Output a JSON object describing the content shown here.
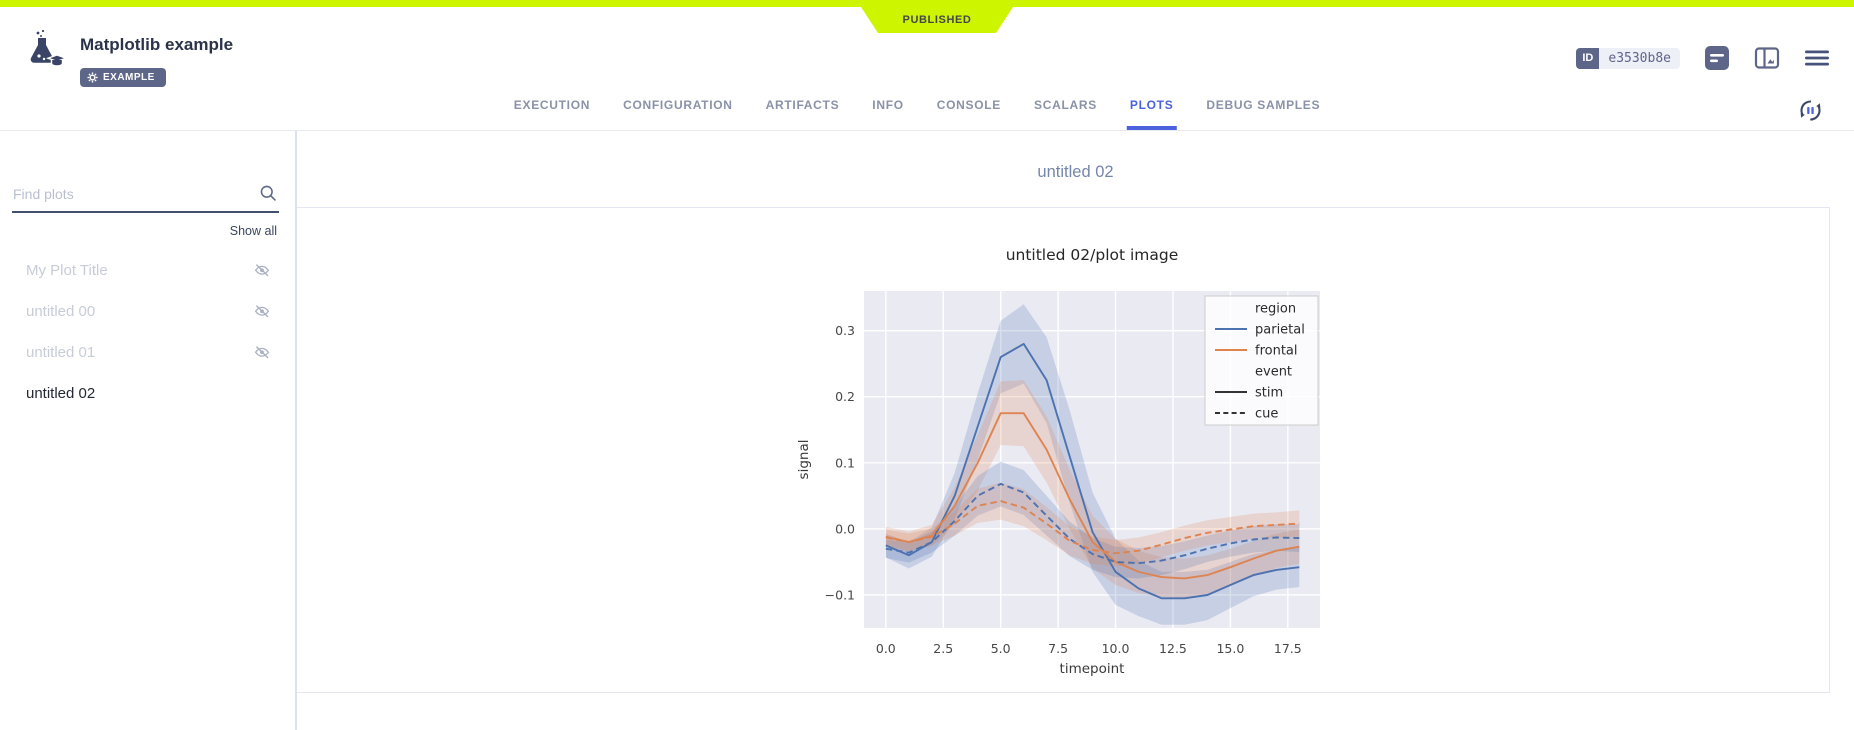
{
  "published_banner": {
    "label": "PUBLISHED"
  },
  "header": {
    "title": "Matplotlib example",
    "tag": "EXAMPLE",
    "id_label": "ID",
    "id_value": "e3530b8e"
  },
  "tabs": {
    "items": [
      "EXECUTION",
      "CONFIGURATION",
      "ARTIFACTS",
      "INFO",
      "CONSOLE",
      "SCALARS",
      "PLOTS",
      "DEBUG SAMPLES"
    ],
    "active": "PLOTS"
  },
  "sidebar": {
    "search_placeholder": "Find plots",
    "show_all": "Show all",
    "plots": [
      {
        "label": "My Plot Title",
        "hidden": true
      },
      {
        "label": "untitled 00",
        "hidden": true
      },
      {
        "label": "untitled 01",
        "hidden": true
      },
      {
        "label": "untitled 02",
        "hidden": false,
        "selected": true
      }
    ]
  },
  "main": {
    "group_title": "untitled 02"
  },
  "colors": {
    "accent_blue": "#4b61dd",
    "banner": "#cdf500",
    "slate": "#5d6588",
    "series_blue": "#4c72b0",
    "series_orange": "#dd8452"
  },
  "chart_data": {
    "type": "line",
    "title": "untitled 02/plot image",
    "xlabel": "timepoint",
    "ylabel": "signal",
    "xlim": [
      -0.95,
      18.9
    ],
    "ylim": [
      -0.15,
      0.36
    ],
    "xticks": [
      0.0,
      2.5,
      5.0,
      7.5,
      10.0,
      12.5,
      15.0,
      17.5
    ],
    "yticks": [
      0.3,
      0.2,
      0.1,
      0.0,
      -0.1
    ],
    "grid": true,
    "background": "#eaeaf2",
    "legend_position": "upper right",
    "legend_entries": [
      {
        "label": "region",
        "type": "title"
      },
      {
        "label": "parietal",
        "type": "line",
        "color": "#4c72b0",
        "dash": "solid"
      },
      {
        "label": "frontal",
        "type": "line",
        "color": "#dd8452",
        "dash": "solid"
      },
      {
        "label": "event",
        "type": "title"
      },
      {
        "label": "stim",
        "type": "line",
        "color": "#333333",
        "dash": "solid"
      },
      {
        "label": "cue",
        "type": "line",
        "color": "#333333",
        "dash": "dashed"
      }
    ],
    "x": [
      0,
      1,
      2,
      3,
      4,
      5,
      6,
      7,
      8,
      9,
      10,
      11,
      12,
      13,
      14,
      15,
      16,
      17,
      18
    ],
    "series": [
      {
        "name": "parietal / stim",
        "region": "parietal",
        "event": "stim",
        "color": "#4c72b0",
        "dash": "solid",
        "values": [
          -0.025,
          -0.04,
          -0.02,
          0.05,
          0.155,
          0.26,
          0.28,
          0.225,
          0.11,
          -0.005,
          -0.065,
          -0.09,
          -0.105,
          -0.105,
          -0.1,
          -0.085,
          -0.07,
          -0.062,
          -0.058
        ],
        "ci": [
          0.018,
          0.02,
          0.022,
          0.035,
          0.05,
          0.055,
          0.06,
          0.065,
          0.07,
          0.06,
          0.05,
          0.042,
          0.04,
          0.04,
          0.038,
          0.035,
          0.032,
          0.03,
          0.03
        ]
      },
      {
        "name": "frontal / stim",
        "region": "frontal",
        "event": "stim",
        "color": "#dd8452",
        "dash": "solid",
        "values": [
          -0.012,
          -0.02,
          -0.01,
          0.035,
          0.1,
          0.175,
          0.175,
          0.12,
          0.045,
          -0.02,
          -0.05,
          -0.065,
          -0.073,
          -0.075,
          -0.07,
          -0.058,
          -0.045,
          -0.033,
          -0.027
        ],
        "ci": [
          0.015,
          0.016,
          0.016,
          0.028,
          0.042,
          0.048,
          0.05,
          0.05,
          0.045,
          0.04,
          0.035,
          0.032,
          0.03,
          0.03,
          0.03,
          0.028,
          0.027,
          0.026,
          0.026
        ]
      },
      {
        "name": "parietal / cue",
        "region": "parietal",
        "event": "cue",
        "color": "#4c72b0",
        "dash": "dashed",
        "values": [
          -0.03,
          -0.036,
          -0.02,
          0.012,
          0.05,
          0.068,
          0.055,
          0.02,
          -0.015,
          -0.038,
          -0.05,
          -0.052,
          -0.048,
          -0.04,
          -0.03,
          -0.022,
          -0.016,
          -0.013,
          -0.014
        ],
        "ci": [
          0.014,
          0.015,
          0.016,
          0.022,
          0.03,
          0.034,
          0.034,
          0.03,
          0.026,
          0.024,
          0.023,
          0.023,
          0.022,
          0.021,
          0.02,
          0.02,
          0.02,
          0.02,
          0.021
        ]
      },
      {
        "name": "frontal / cue",
        "region": "frontal",
        "event": "cue",
        "color": "#dd8452",
        "dash": "dashed",
        "values": [
          -0.013,
          -0.02,
          -0.012,
          0.008,
          0.035,
          0.042,
          0.032,
          0.008,
          -0.018,
          -0.032,
          -0.037,
          -0.033,
          -0.024,
          -0.014,
          -0.006,
          -0.001,
          0.004,
          0.006,
          0.008
        ],
        "ci": [
          0.012,
          0.013,
          0.013,
          0.018,
          0.026,
          0.028,
          0.028,
          0.025,
          0.022,
          0.021,
          0.02,
          0.02,
          0.019,
          0.019,
          0.019,
          0.019,
          0.019,
          0.019,
          0.02
        ]
      }
    ]
  }
}
